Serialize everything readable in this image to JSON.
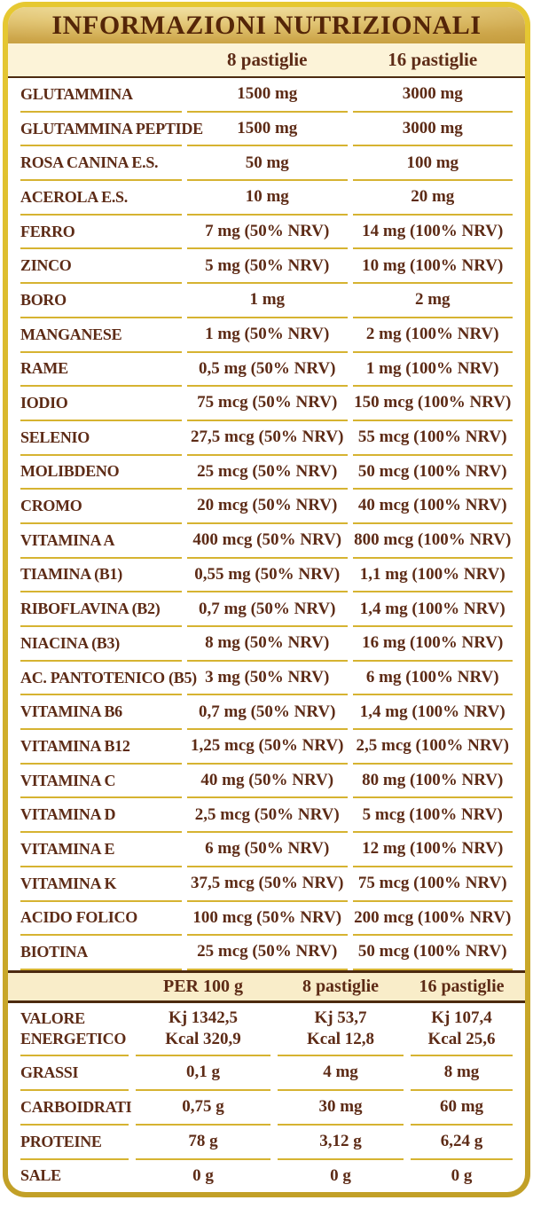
{
  "title": "INFORMAZIONI NUTRIZIONALI",
  "colors": {
    "text": "#5d2b16",
    "title_text": "#542508",
    "border_gold_top": "#e6c832",
    "border_gold_bottom": "#c2a027",
    "title_band_light": "#f6e9b2",
    "title_band_dark": "#bd9331",
    "cream_header": "#fcf3d8",
    "cream_footer": "#f9edc9",
    "gold_line": "#d6b331",
    "dark_line": "#4c2a0f"
  },
  "nutrients_table": {
    "columns": [
      "",
      "8 pastiglie",
      "16 pastiglie"
    ],
    "rows": [
      {
        "label": "GLUTAMMINA",
        "per8": "1500 mg",
        "per16": "3000 mg"
      },
      {
        "label": "GLUTAMMINA PEPTIDE",
        "per8": "1500 mg",
        "per16": "3000 mg"
      },
      {
        "label": "ROSA CANINA E.S.",
        "per8": "50 mg",
        "per16": "100 mg"
      },
      {
        "label": "ACEROLA E.S.",
        "per8": "10 mg",
        "per16": "20 mg"
      },
      {
        "label": "FERRO",
        "per8": "7 mg (50% NRV)",
        "per16": "14 mg (100% NRV)"
      },
      {
        "label": "ZINCO",
        "per8": "5 mg (50% NRV)",
        "per16": "10 mg (100% NRV)"
      },
      {
        "label": "BORO",
        "per8": "1 mg",
        "per16": "2 mg"
      },
      {
        "label": "MANGANESE",
        "per8": "1 mg (50% NRV)",
        "per16": "2 mg (100% NRV)"
      },
      {
        "label": "RAME",
        "per8": "0,5 mg (50% NRV)",
        "per16": "1 mg (100% NRV)"
      },
      {
        "label": "IODIO",
        "per8": "75 mcg (50% NRV)",
        "per16": "150 mcg (100% NRV)"
      },
      {
        "label": "SELENIO",
        "per8": "27,5 mcg (50% NRV)",
        "per16": "55 mcg (100% NRV)"
      },
      {
        "label": "MOLIBDENO",
        "per8": "25 mcg (50% NRV)",
        "per16": "50 mcg (100% NRV)"
      },
      {
        "label": "CROMO",
        "per8": "20 mcg (50% NRV)",
        "per16": "40 mcg (100% NRV)"
      },
      {
        "label": "VITAMINA A",
        "per8": "400 mcg (50% NRV)",
        "per16": "800 mcg (100% NRV)"
      },
      {
        "label": "TIAMINA (B1)",
        "per8": "0,55 mg (50% NRV)",
        "per16": "1,1 mg (100% NRV)"
      },
      {
        "label": "RIBOFLAVINA (B2)",
        "per8": "0,7 mg (50% NRV)",
        "per16": "1,4 mg (100% NRV)"
      },
      {
        "label": "NIACINA (B3)",
        "per8": "8 mg (50% NRV)",
        "per16": "16 mg (100% NRV)"
      },
      {
        "label": "AC. PANTOTENICO (B5)",
        "per8": "3 mg (50% NRV)",
        "per16": "6 mg (100% NRV)"
      },
      {
        "label": "VITAMINA B6",
        "per8": "0,7 mg (50% NRV)",
        "per16": "1,4 mg (100% NRV)"
      },
      {
        "label": "VITAMINA B12",
        "per8": "1,25 mcg (50% NRV)",
        "per16": "2,5 mcg (100% NRV)"
      },
      {
        "label": "VITAMINA C",
        "per8": "40 mg (50% NRV)",
        "per16": "80 mg (100% NRV)"
      },
      {
        "label": "VITAMINA D",
        "per8": "2,5 mcg (50% NRV)",
        "per16": "5 mcg (100% NRV)"
      },
      {
        "label": "VITAMINA E",
        "per8": "6 mg (50% NRV)",
        "per16": "12 mg (100% NRV)"
      },
      {
        "label": "VITAMINA K",
        "per8": "37,5 mcg (50% NRV)",
        "per16": "75 mcg (100% NRV)"
      },
      {
        "label": "ACIDO FOLICO",
        "per8": "100 mcg (50% NRV)",
        "per16": "200 mcg (100% NRV)"
      },
      {
        "label": "BIOTINA",
        "per8": "25 mcg (50% NRV)",
        "per16": "50 mcg (100% NRV)"
      }
    ]
  },
  "energy_table": {
    "columns": [
      "",
      "PER 100 g",
      "8 pastiglie",
      "16 pastiglie"
    ],
    "rows": [
      {
        "label": [
          "VALORE",
          "ENERGETICO"
        ],
        "per100g": [
          "Kj 1342,5",
          "Kcal 320,9"
        ],
        "per8": [
          "Kj 53,7",
          "Kcal 12,8"
        ],
        "per16": [
          "Kj 107,4",
          "Kcal 25,6"
        ],
        "tall": true
      },
      {
        "label": "GRASSI",
        "per100g": "0,1 g",
        "per8": "4 mg",
        "per16": "8 mg"
      },
      {
        "label": "CARBOIDRATI",
        "per100g": "0,75 g",
        "per8": "30 mg",
        "per16": "60 mg"
      },
      {
        "label": "PROTEINE",
        "per100g": "78 g",
        "per8": "3,12 g",
        "per16": "6,24 g"
      },
      {
        "label": "SALE",
        "per100g": "0 g",
        "per8": "0 g",
        "per16": "0 g",
        "last": true
      }
    ]
  }
}
